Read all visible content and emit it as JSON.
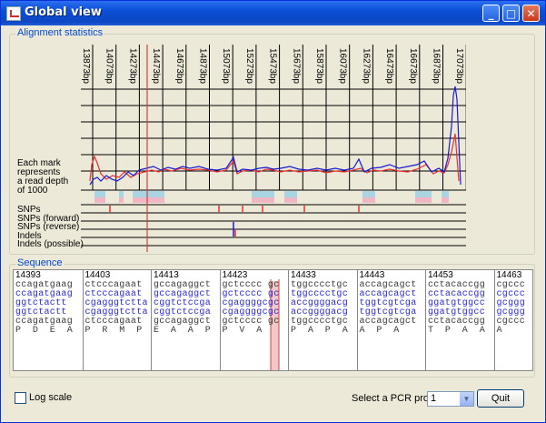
{
  "window": {
    "title": "Global view",
    "min_label": "_",
    "max_label": "□",
    "close_label": "✕"
  },
  "alignment": {
    "legend": "Alignment statistics",
    "ticks": [
      "13873bp",
      "14073bp",
      "14273bp",
      "14473bp",
      "14673bp",
      "14873bp",
      "15073bp",
      "15273bp",
      "15473bp",
      "15673bp",
      "15873bp",
      "16073bp",
      "16273bp",
      "16473bp",
      "16673bp",
      "16873bp",
      "17073bp"
    ],
    "depth_label": [
      "Each mark",
      "represents",
      "a read depth",
      "of 1000"
    ],
    "track_labels": [
      "SNPs",
      "SNPs (forward)",
      "SNPs (reverse)",
      "Indels",
      "Indels (possible)"
    ],
    "colors": {
      "forward": "#e83030",
      "reverse": "#1a1acc",
      "cursor": "#d04040",
      "bar_blue": "#a9d4e2",
      "bar_pink": "#f1b6c4"
    }
  },
  "sequence": {
    "legend": "Sequence",
    "positions": [
      "14393",
      "14403",
      "14413",
      "14423",
      "14433",
      "14443",
      "14453",
      "14463"
    ],
    "row1": [
      "ccagatgaag",
      "ctcccagaat",
      "gccagaggct",
      "gctcccc gc",
      "tggcccctgc",
      "accagcagct",
      "cctacaccgg",
      "cgccc"
    ],
    "row2": [
      "ccagatgaag",
      "ctcccagaat",
      "gccagaggct",
      "gctcccc gc",
      "tggcccctgc",
      "accagcagct",
      "cctacaccgg",
      "cgccc"
    ],
    "row3": [
      "ggtctactt",
      "cgagggtctta",
      "cggtctccga",
      "cgaggggcgc",
      "accggggacg",
      "tggtcgtcga",
      "ggatgtggcc",
      "gcggg"
    ],
    "row4": [
      "ggtctactt",
      "cgagggtctta",
      "cggtctccga",
      "cgaggggcgc",
      "accggggacg",
      "tggtcgtcga",
      "ggatgtggcc",
      "gcggg"
    ],
    "row5": [
      "ccagatgaag",
      "ctcccagaat",
      "gccagaggct",
      "gctcccc gc",
      "tggcccctgc",
      "accagcagct",
      "cctacaccgg",
      "cgccc"
    ],
    "aa": [
      "P  D  E  A",
      "P  R  M  P",
      "E  A  A  P",
      "P  V  A",
      "P  A  P  A",
      "A  P  A",
      "T  P  A  A",
      "A"
    ],
    "row_colors": [
      "#3a3a3a",
      "#2a2ad0",
      "#2a2ad0",
      "#2a2ad0",
      "#3a3a3a",
      "#3a3a3a"
    ]
  },
  "controls": {
    "log_scale": "Log scale",
    "pcr_label": "Select a PCR product",
    "pcr_value": "1",
    "quit": "Quit"
  }
}
